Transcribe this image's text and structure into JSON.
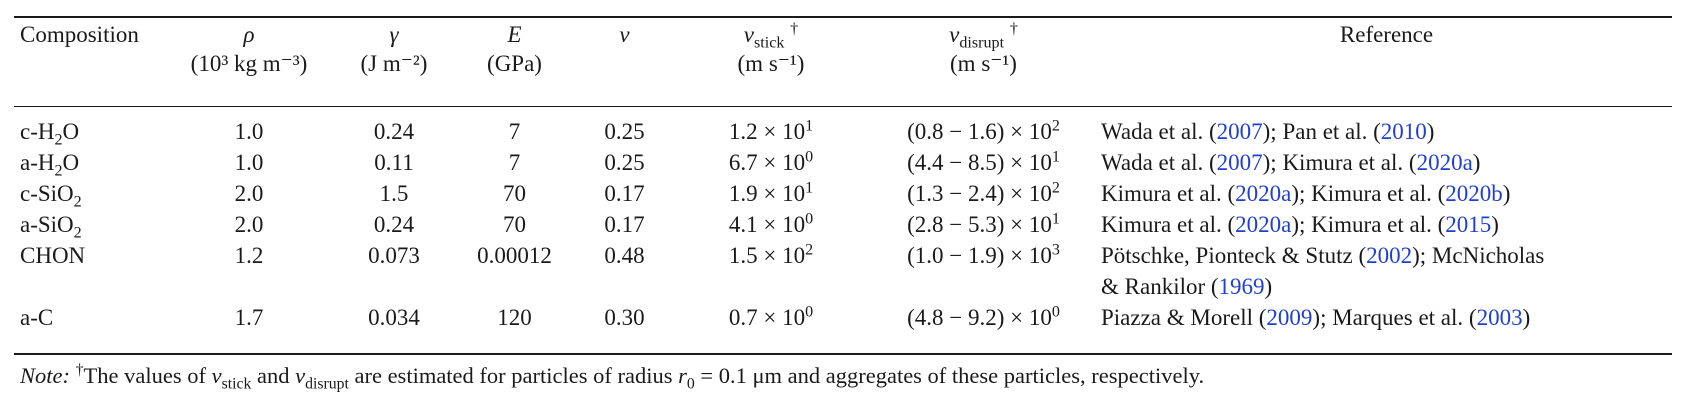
{
  "table": {
    "headers": {
      "composition": "Composition",
      "rho": "ρ",
      "rho_unit": "(10³ kg m⁻³)",
      "gamma": "γ",
      "gamma_unit": "(J m⁻²)",
      "E": "E",
      "E_unit": "(GPa)",
      "nu": "ν",
      "vstick": "v",
      "vstick_sub": "stick",
      "vstick_mark": "†",
      "vstick_unit": "(m s⁻¹)",
      "vdisrupt": "v",
      "vdisrupt_sub": "disrupt",
      "vdisrupt_mark": "†",
      "vdisrupt_unit": "(m s⁻¹)",
      "reference": "Reference"
    },
    "rows": [
      {
        "composition_pre": "c-H",
        "composition_sub": "2",
        "composition_post": "O",
        "rho": "1.0",
        "gamma": "0.24",
        "E": "7",
        "nu": "0.25",
        "vstick_mant": "1.2 × 10",
        "vstick_exp": "1",
        "vdisrupt_mant": "(0.8 − 1.6) × 10",
        "vdisrupt_exp": "2",
        "ref": [
          "Wada et al. (",
          "2007",
          "); Pan et al. (",
          "2010",
          ")"
        ]
      },
      {
        "composition_pre": "a-H",
        "composition_sub": "2",
        "composition_post": "O",
        "rho": "1.0",
        "gamma": "0.11",
        "E": "7",
        "nu": "0.25",
        "vstick_mant": "6.7 × 10",
        "vstick_exp": "0",
        "vdisrupt_mant": "(4.4 − 8.5) × 10",
        "vdisrupt_exp": "1",
        "ref": [
          "Wada et al. (",
          "2007",
          "); Kimura et al. (",
          "2020a",
          ")"
        ]
      },
      {
        "composition_pre": "c-SiO",
        "composition_sub": "2",
        "composition_post": "",
        "rho": "2.0",
        "gamma": "1.5",
        "E": "70",
        "nu": "0.17",
        "vstick_mant": "1.9 × 10",
        "vstick_exp": "1",
        "vdisrupt_mant": "(1.3 − 2.4) × 10",
        "vdisrupt_exp": "2",
        "ref": [
          "Kimura et al. (",
          "2020a",
          "); Kimura et al. (",
          "2020b",
          ")"
        ]
      },
      {
        "composition_pre": "a-SiO",
        "composition_sub": "2",
        "composition_post": "",
        "rho": "2.0",
        "gamma": "0.24",
        "E": "70",
        "nu": "0.17",
        "vstick_mant": "4.1 × 10",
        "vstick_exp": "0",
        "vdisrupt_mant": "(2.8 − 5.3) × 10",
        "vdisrupt_exp": "1",
        "ref": [
          "Kimura et al. (",
          "2020a",
          "); Kimura et al. (",
          "2015",
          ")"
        ]
      },
      {
        "composition_pre": "CHON",
        "composition_sub": "",
        "composition_post": "",
        "rho": "1.2",
        "gamma": "0.073",
        "E": "0.00012",
        "nu": "0.48",
        "vstick_mant": "1.5 × 10",
        "vstick_exp": "2",
        "vdisrupt_mant": "(1.0 − 1.9) × 10",
        "vdisrupt_exp": "3",
        "ref": [
          "Pötschke, Pionteck & Stutz (",
          "2002",
          "); McNicholas",
          "& Rankilor (",
          "1969",
          ")"
        ]
      },
      {
        "composition_pre": "a-C",
        "composition_sub": "",
        "composition_post": "",
        "rho": "1.7",
        "gamma": "0.034",
        "E": "120",
        "nu": "0.30",
        "vstick_mant": "0.7 × 10",
        "vstick_exp": "0",
        "vdisrupt_mant": "(4.8 − 9.2) × 10",
        "vdisrupt_exp": "0",
        "ref": [
          "Piazza & Morell (",
          "2009",
          "); Marques et al. (",
          "2003",
          ")"
        ]
      }
    ]
  },
  "note": {
    "label": "Note:",
    "dagger": "†",
    "t1": "The values of ",
    "v1": "v",
    "v1_sub": "stick",
    "t2": " and ",
    "v2": "v",
    "v2_sub": "disrupt",
    "t3": " are estimated for particles of radius ",
    "r": "r",
    "r_sub": "0",
    "t4": " = 0.1 μm and aggregates of these particles, respectively."
  },
  "colors": {
    "text": "#1a1a1a",
    "citation_link": "#1f3fd1"
  }
}
